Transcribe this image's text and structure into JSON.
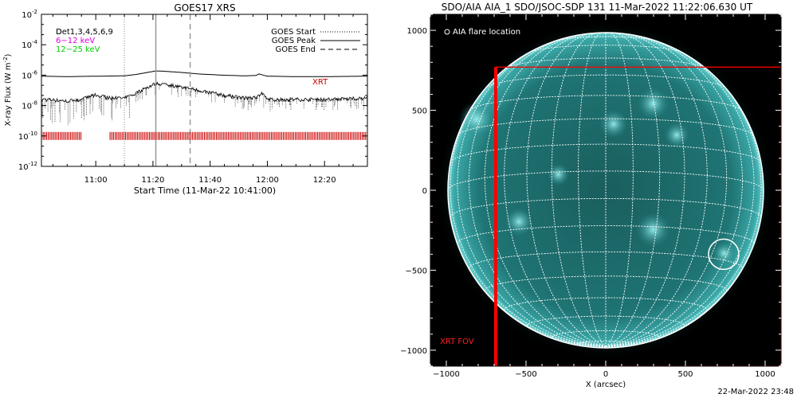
{
  "chart_data": [
    {
      "type": "line",
      "title": "GOES17 XRS",
      "xlabel": "Start Time (11-Mar-22 10:41:00)",
      "ylabel": "X-ray Flux (W m",
      "ylabel_sup": "-2",
      "ylabel_close": ")",
      "y_scale": "log",
      "ylim": [
        1e-12,
        0.01
      ],
      "xlim": [
        "10:41",
        "12:35"
      ],
      "x_ticks": [
        "11:00",
        "11:20",
        "11:40",
        "12:00",
        "12:20"
      ],
      "y_ticks": [
        {
          "base": "10",
          "exp": "-2",
          "value": 0.01
        },
        {
          "base": "10",
          "exp": "-4",
          "value": 0.0001
        },
        {
          "base": "10",
          "exp": "-6",
          "value": 1e-06
        },
        {
          "base": "10",
          "exp": "-8",
          "value": 1e-08
        },
        {
          "base": "10",
          "exp": "-10",
          "value": 1e-10
        },
        {
          "base": "10",
          "exp": "-12",
          "value": 1e-12
        }
      ],
      "detector_labels": [
        {
          "text": "D",
          "color": "#000000"
        },
        {
          "text": "Det1,3,4,5,6,9",
          "color": "#000000"
        },
        {
          "text": "6−12 keV",
          "color": "#e000e0"
        },
        {
          "text": "12−25 keV",
          "color": "#00cc00"
        }
      ],
      "legend": {
        "placement": "top-right",
        "entries": [
          {
            "label": "GOES Start",
            "style": "dotted",
            "time": "11:10"
          },
          {
            "label": "GOES Peak",
            "style": "solid",
            "time": "11:21"
          },
          {
            "label": "GOES End",
            "style": "dashed",
            "time": "11:33"
          }
        ]
      },
      "series": [
        {
          "name": "XRT",
          "color": "#cc0000",
          "style": "tick-marks",
          "level": 1e-10,
          "coverage": [
            [
              "10:41",
              "10:55"
            ],
            [
              "11:05",
              "12:35"
            ]
          ]
        }
      ],
      "curves": [
        {
          "color": "#000000",
          "style": "solid",
          "x": [
            "10:41",
            "10:50",
            "11:00",
            "11:10",
            "11:14",
            "11:18",
            "11:21",
            "11:24",
            "11:30",
            "11:36",
            "11:44",
            "11:52",
            "11:56",
            "11:57",
            "12:00",
            "12:10",
            "12:20",
            "12:35"
          ],
          "y": [
            8.5e-07,
            8e-07,
            8.5e-07,
            9e-07,
            1.1e-06,
            1.5e-06,
            1.9e-06,
            1.8e-06,
            1.5e-06,
            1.2e-06,
            1e-06,
            9e-07,
            9.5e-07,
            1.2e-06,
            8.5e-07,
            8e-07,
            8e-07,
            8.5e-07
          ]
        },
        {
          "color": "#000000",
          "style": "noisy",
          "x": [
            "10:41",
            "10:50",
            "10:55",
            "11:00",
            "11:05",
            "11:10",
            "11:14",
            "11:18",
            "11:21",
            "11:24",
            "11:30",
            "11:36",
            "11:44",
            "11:52",
            "11:56",
            "11:58",
            "12:00",
            "12:10",
            "12:20",
            "12:35"
          ],
          "y": [
            2.5e-08,
            2e-08,
            2.5e-08,
            5e-08,
            3e-08,
            3e-08,
            6e-08,
            1.6e-07,
            2.8e-07,
            2.5e-07,
            1.6e-07,
            1e-07,
            5e-08,
            3e-08,
            3.5e-08,
            6e-08,
            2.5e-08,
            2.5e-08,
            2.5e-08,
            3e-08
          ]
        }
      ]
    },
    {
      "type": "heatmap",
      "title": "SDO/AIA AIA_1 SDO/JSOC-SDP 131 11-Mar-2022 11:22:06.630 UT",
      "xlabel": "X (arcsec)",
      "ylabel": "",
      "xlim": [
        -1100,
        1100
      ],
      "ylim": [
        -1100,
        1100
      ],
      "x_ticks": [
        -1000,
        -500,
        0,
        500,
        1000
      ],
      "y_ticks": [
        1000,
        500,
        0,
        -500,
        -1000
      ],
      "x_tick_labels": [
        "−1000",
        "−500",
        "0",
        "500",
        "1000"
      ],
      "y_tick_labels": [
        "1000",
        "500",
        "0",
        "−500",
        "−1000"
      ],
      "solar_radius": 990,
      "grid": true,
      "colors": {
        "background": "#000000",
        "disk": "#1b6f6f",
        "grid": "#ffffff",
        "fov": "#ff0000"
      },
      "annotations": [
        {
          "type": "flare-location",
          "label": "AIA flare location",
          "x": 740,
          "y": -400
        },
        {
          "type": "fov-box",
          "label": "XRT FOV",
          "x0": -690,
          "x1": 1100,
          "y0": -1100,
          "y1": 770
        }
      ]
    }
  ],
  "footer": {
    "timestamp": "22-Mar-2022 23:48"
  }
}
